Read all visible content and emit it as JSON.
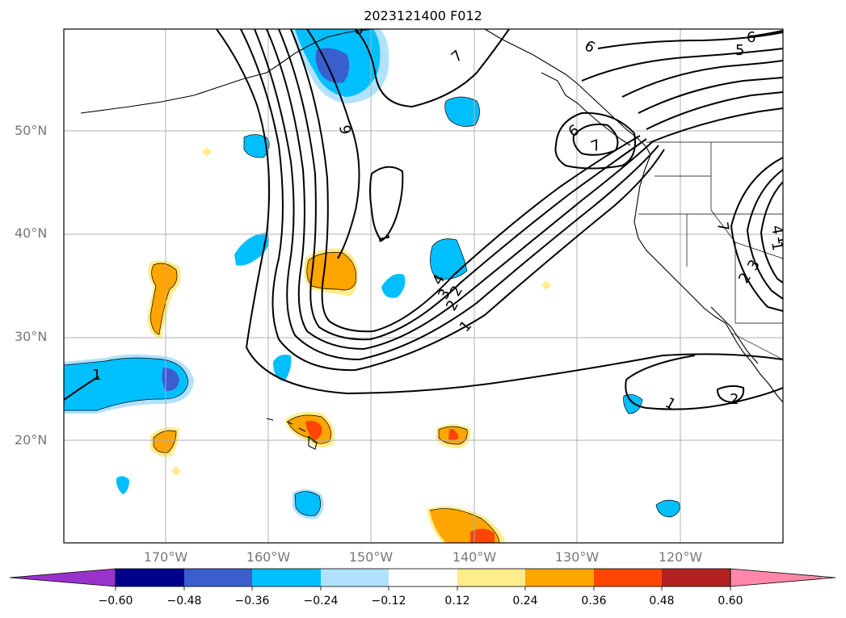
{
  "title": "2023121400 F012",
  "lat_labels": [
    "50°N",
    "40°N",
    "30°N",
    "20°N"
  ],
  "lon_labels": [
    "170°W",
    "160°W",
    "150°W",
    "140°W",
    "130°W",
    "120°W"
  ],
  "contour_labels": [
    "6",
    "6",
    "5",
    "7",
    "6",
    "9",
    "6",
    "7",
    "1",
    "7",
    "1",
    "2",
    "3",
    "4",
    "2",
    "1",
    "1",
    "2",
    "1",
    "2",
    "3",
    "4",
    "1"
  ],
  "colorbar": {
    "labels": [
      "−0.60",
      "−0.48",
      "−0.36",
      "−0.24",
      "−0.12",
      "0.12",
      "0.24",
      "0.36",
      "0.48",
      "0.60"
    ],
    "colors": [
      "#9932cc",
      "#00008b",
      "#3a5fcd",
      "#00bfff",
      "#b0e2ff",
      "#ffffff",
      "#ffec8b",
      "#ffa500",
      "#ff4500",
      "#b22222",
      "#ff88aa"
    ],
    "extend": "both"
  },
  "palette": {
    "blue_dark": "#3a5fcd",
    "blue": "#00bfff",
    "blue_light": "#b0e2ff",
    "yellow": "#ffec8b",
    "orange": "#ffa500",
    "red": "#ff4500"
  }
}
